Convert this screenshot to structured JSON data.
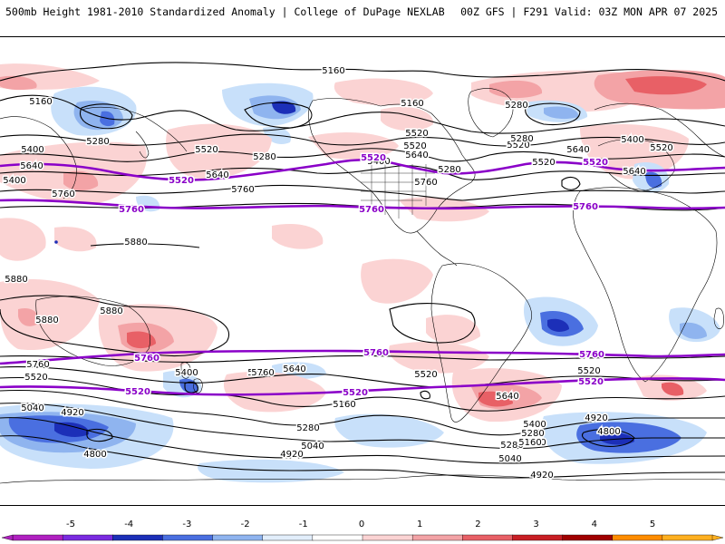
{
  "header": {
    "title": "500mb Height 1981-2010 Standardized Anomaly | College of DuPage NEXLAB",
    "run_info": "00Z GFS | F291 Valid: 03Z MON APR 07 2025"
  },
  "colors": {
    "purple_contour": "#8a00c8",
    "black_contour": "#000000",
    "neg_light": "#c8e0fa",
    "neg_mid": "#8fb4ef",
    "neg_strong": "#4a6fe0",
    "neg_deep": "#1c2fb8",
    "pos_light": "#fbd3d3",
    "pos_mid": "#f3a3a6",
    "pos_strong": "#e86066",
    "pos_deep": "#c81e24"
  },
  "colorbar": {
    "tick_labels": [
      "-5",
      "-4",
      "-3",
      "-2",
      "-1",
      "0",
      "1",
      "2",
      "3",
      "4",
      "5"
    ],
    "segment_colors": [
      "#b020c0",
      "#7a2be0",
      "#1c2fb8",
      "#4a6fe0",
      "#8fb4ef",
      "#e2eefb",
      "#ffffff",
      "#fbd3d3",
      "#f3a3a6",
      "#e86066",
      "#c81e24",
      "#a00000",
      "#ff8c00",
      "#ffb020"
    ]
  },
  "contour_labels": {
    "black": [
      "5160",
      "5160",
      "5280",
      "5160",
      "5280",
      "5280",
      "5400",
      "5520",
      "5520",
      "5520",
      "5520",
      "5640",
      "5640",
      "5640",
      "5640",
      "5640",
      "5400",
      "5760",
      "5760",
      "5760",
      "5400",
      "5520",
      "5400",
      "5280",
      "5280",
      "5520",
      "5880",
      "5880",
      "5880",
      "5880",
      "5760",
      "5760",
      "5400",
      "5760",
      "5640",
      "5520",
      "5520",
      "5520",
      "5400",
      "5280",
      "5160",
      "5160",
      "5040",
      "4920",
      "5040",
      "4800",
      "5280",
      "5040",
      "4920",
      "5160",
      "5640",
      "5400",
      "5280",
      "5160",
      "5040",
      "4920",
      "4920",
      "4800"
    ],
    "purple": [
      "5520",
      "5520",
      "5520",
      "5760",
      "5760",
      "5760",
      "5760",
      "5760",
      "5760",
      "5520",
      "5520",
      "5520"
    ]
  }
}
